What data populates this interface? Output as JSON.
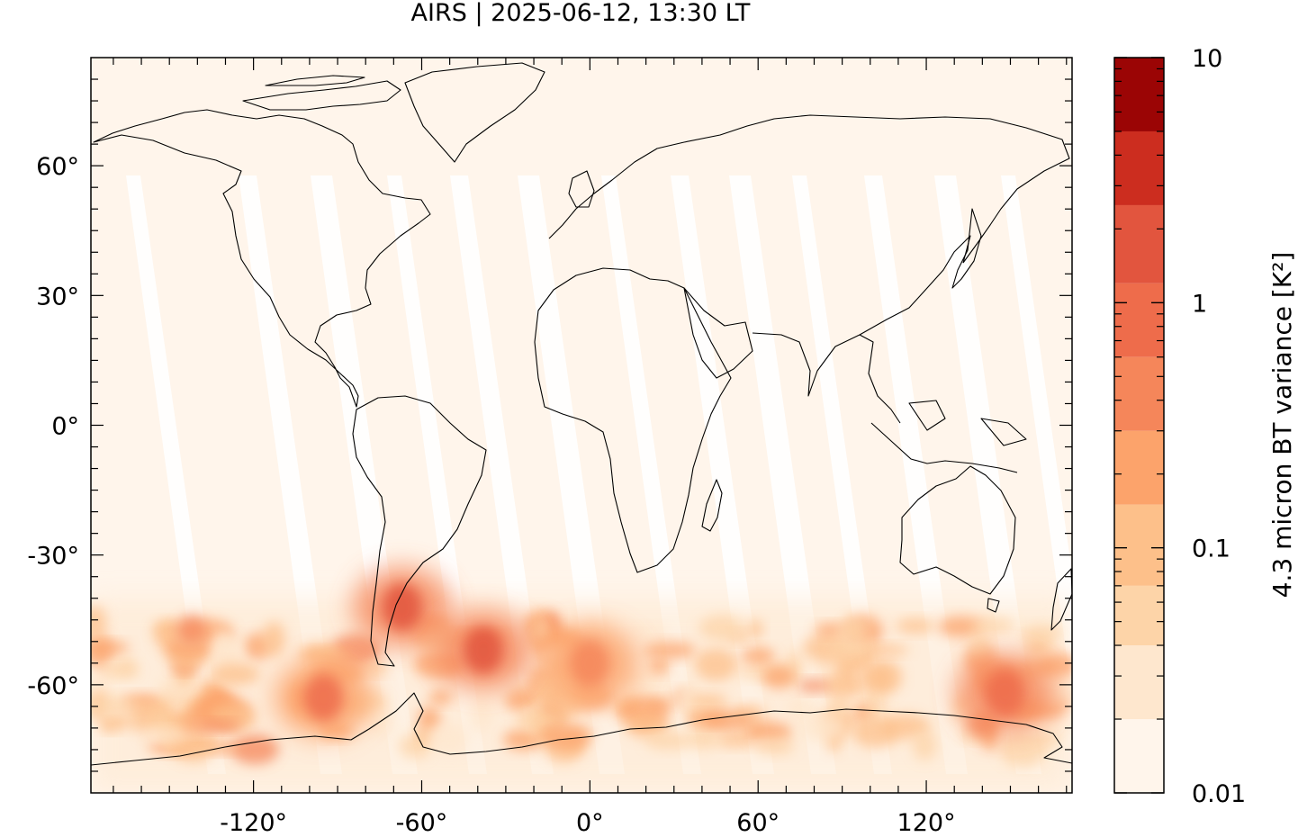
{
  "title": "AIRS | 2025-06-12, 13:30 LT",
  "map": {
    "projection": "equirectangular",
    "lon_range": [
      -178,
      172
    ],
    "lat_range": [
      -85,
      85
    ],
    "lon_ticks": [
      -120,
      -60,
      0,
      60,
      120
    ],
    "lon_tick_labels": [
      "-120°",
      "-60°",
      "0°",
      "60°",
      "120°"
    ],
    "lat_ticks": [
      60,
      30,
      0,
      -30,
      -60
    ],
    "lat_tick_labels": [
      "60°",
      "30°",
      "0°",
      "-30°",
      "-60°"
    ],
    "background_color": "#fff5eb",
    "swath_gap_color": "#ffffff",
    "coastline_color": "#000000",
    "hotspots": [
      {
        "region": "Southern Andes / Patagonia",
        "lon": -67,
        "lat": -42,
        "variance": 1.5
      },
      {
        "region": "South Atlantic",
        "lon": -38,
        "lat": -52,
        "variance": 1.2
      },
      {
        "region": "Southeast Pacific",
        "lon": -95,
        "lat": -63,
        "variance": 0.8
      },
      {
        "region": "South of Australia",
        "lon": 148,
        "lat": -62,
        "variance": 0.9
      },
      {
        "region": "Southern Indian Ocean",
        "lon": 0,
        "lat": -55,
        "variance": 0.5
      }
    ]
  },
  "colorbar": {
    "label": "4.3 micron BT variance [K²]",
    "scale": "log",
    "range": [
      0.01,
      10
    ],
    "tick_values": [
      0.01,
      0.1,
      1,
      10
    ],
    "tick_labels": [
      "0.01",
      "0.1",
      "1",
      "10"
    ],
    "levels": [
      {
        "from": 0.01,
        "to": 0.02,
        "color": "#fff5eb"
      },
      {
        "from": 0.02,
        "to": 0.04,
        "color": "#fee7ce"
      },
      {
        "from": 0.04,
        "to": 0.07,
        "color": "#fdd4a8"
      },
      {
        "from": 0.07,
        "to": 0.15,
        "color": "#fdc08a"
      },
      {
        "from": 0.15,
        "to": 0.3,
        "color": "#fca36b"
      },
      {
        "from": 0.3,
        "to": 0.6,
        "color": "#f5865a"
      },
      {
        "from": 0.6,
        "to": 1.2,
        "color": "#ee6c4b"
      },
      {
        "from": 1.2,
        "to": 2.5,
        "color": "#e2553e"
      },
      {
        "from": 2.5,
        "to": 5,
        "color": "#cc2d1f"
      },
      {
        "from": 5,
        "to": 10,
        "color": "#9b0505"
      }
    ]
  }
}
